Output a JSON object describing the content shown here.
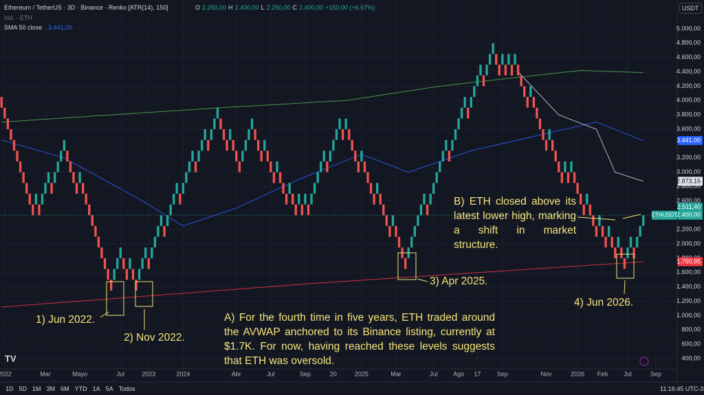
{
  "header": {
    "symbol": "Ethereum / TetherUS · 3D · Binance · Renko [ATR(14), 150]",
    "ohlc": [
      "O",
      "2.250,00",
      "H",
      "2.400,00",
      "L",
      "2.250,00",
      "C",
      "2.400,00",
      "+150,00 (+6,67%)"
    ],
    "volume": "Vol. · ETH",
    "sma_label": "SMA 50 close",
    "sma_value": "3.441,00",
    "currency": "USDT"
  },
  "toolbar": {
    "ranges": [
      "1D",
      "5D",
      "1M",
      "3M",
      "6M",
      "YTD",
      "1A",
      "5A",
      "Todos"
    ],
    "clock": "11:16:45 UTC-3"
  },
  "chart_data": {
    "type": "renko",
    "brick_size": 150,
    "up_color": "#26a69a",
    "down_color": "#ef5350",
    "values": [
      3900,
      3750,
      3600,
      3450,
      3300,
      3150,
      3000,
      2850,
      2700,
      2550,
      2400,
      2700,
      2400,
      2700,
      2850,
      3000,
      2700,
      3000,
      3150,
      3300,
      3450,
      3150,
      3000,
      2850,
      2700,
      3000,
      2700,
      2550,
      2400,
      2250,
      2100,
      1950,
      1800,
      1650,
      1500,
      1350,
      1650,
      1800,
      1950,
      1650,
      1500,
      1800,
      1500,
      1350,
      1650,
      1800,
      1950,
      1650,
      1950,
      2100,
      2250,
      2400,
      2100,
      2400,
      2550,
      2700,
      2850,
      2550,
      2850,
      3000,
      3150,
      3300,
      3000,
      3300,
      3450,
      3600,
      3300,
      3600,
      3750,
      3900,
      3600,
      3450,
      3300,
      3600,
      3300,
      3150,
      3000,
      3300,
      3450,
      3600,
      3750,
      3450,
      3300,
      3150,
      3450,
      3150,
      3000,
      2850,
      3150,
      2850,
      2700,
      2550,
      2850,
      2550,
      2400,
      2700,
      2400,
      2700,
      2400,
      2700,
      2850,
      3000,
      3150,
      3300,
      3000,
      3300,
      3450,
      3600,
      3750,
      3450,
      3750,
      3450,
      3300,
      3150,
      3000,
      3300,
      3000,
      2850,
      2700,
      2550,
      2850,
      2550,
      2400,
      2250,
      2100,
      2400,
      2100,
      1950,
      1800,
      1650,
      1950,
      2100,
      2250,
      2400,
      2550,
      2700,
      2400,
      2700,
      2850,
      3000,
      3150,
      3300,
      3450,
      3150,
      3450,
      3600,
      3750,
      3900,
      4050,
      3750,
      4050,
      4200,
      4350,
      4500,
      4200,
      4500,
      4650,
      4800,
      4500,
      4350,
      4650,
      4350,
      4650,
      4350,
      4650,
      4350,
      4200,
      4050,
      3900,
      4200,
      3900,
      3750,
      3600,
      3450,
      3300,
      3600,
      3300,
      3150,
      3000,
      2850,
      3150,
      2850,
      3150,
      2850,
      2700,
      2550,
      2400,
      2700,
      2400,
      2250,
      2100,
      2400,
      2100,
      1950,
      2250,
      1950,
      1800,
      2100,
      1800,
      1650,
      1950,
      2100,
      1800,
      2100,
      2250,
      2400
    ],
    "lines": [
      {
        "color": "#2962ff",
        "x": [
          0,
          20,
          45,
          58,
          75,
          95,
          115,
          130,
          150,
          170,
          190,
          205
        ],
        "values": [
          3450,
          3200,
          2600,
          2250,
          2500,
          2900,
          3250,
          3000,
          3300,
          3500,
          3700,
          3441
        ]
      },
      {
        "color": "#4caf50",
        "x": [
          0,
          70,
          110,
          140,
          160,
          185,
          205
        ],
        "values": [
          3700,
          3900,
          4000,
          4200,
          4300,
          4420,
          4390
        ]
      },
      {
        "color": "#f23645",
        "x": [
          0,
          100,
          205
        ],
        "values": [
          1120,
          1450,
          1750.95
        ]
      },
      {
        "color": "#d1d4dc",
        "x": [
          165,
          178,
          190,
          196,
          205
        ],
        "values": [
          4400,
          3800,
          3600,
          3000,
          2873.16
        ]
      }
    ],
    "ylim": [
      400,
      5000
    ],
    "yticks": [
      {
        "value": 400,
        "label": "400,00"
      },
      {
        "value": 600,
        "label": "600,00"
      },
      {
        "value": 800,
        "label": "800,00"
      },
      {
        "value": 1000,
        "label": "1.000,00"
      },
      {
        "value": 1200,
        "label": "1.200,00"
      },
      {
        "value": 1400,
        "label": "1.400,00"
      },
      {
        "value": 1600,
        "label": "1.600,00"
      },
      {
        "value": 1800,
        "label": "1.800,00"
      },
      {
        "value": 2000,
        "label": "2.000,00"
      },
      {
        "value": 2200,
        "label": "2.200,00"
      },
      {
        "value": 2600,
        "label": "2.600,00"
      },
      {
        "value": 2800,
        "label": "2.800,00"
      },
      {
        "value": 3000,
        "label": "3.000,00"
      },
      {
        "value": 3200,
        "label": "3.200,00"
      },
      {
        "value": 3600,
        "label": "3.600,00"
      },
      {
        "value": 3800,
        "label": "3.800,00"
      },
      {
        "value": 4000,
        "label": "4.000,00"
      },
      {
        "value": 4200,
        "label": "4.200,00"
      },
      {
        "value": 4400,
        "label": "4.400,00"
      },
      {
        "value": 4600,
        "label": "4.600,00"
      },
      {
        "value": 4800,
        "label": "4.800,00"
      },
      {
        "value": 5000,
        "label": "5.000,00"
      }
    ],
    "xticks": [
      {
        "value": 1,
        "label": "2022"
      },
      {
        "value": 14,
        "label": "Mar"
      },
      {
        "value": 25,
        "label": "Mayo"
      },
      {
        "value": 38,
        "label": "Jul"
      },
      {
        "value": 47,
        "label": "2023"
      },
      {
        "value": 58,
        "label": "2024"
      },
      {
        "value": 75,
        "label": "Abr"
      },
      {
        "value": 86,
        "label": "Jul"
      },
      {
        "value": 97,
        "label": "Sep"
      },
      {
        "value": 106,
        "label": "20"
      },
      {
        "value": 115,
        "label": "2025"
      },
      {
        "value": 126,
        "label": "Mar"
      },
      {
        "value": 138,
        "label": "Jul"
      },
      {
        "value": 146,
        "label": "Ago"
      },
      {
        "value": 152,
        "label": "17"
      },
      {
        "value": 160,
        "label": "Sep"
      },
      {
        "value": 174,
        "label": "Nov"
      },
      {
        "value": 184,
        "label": "2026"
      },
      {
        "value": 192,
        "label": "Feb"
      },
      {
        "value": 200,
        "label": "Jul"
      },
      {
        "value": 209,
        "label": "Sep"
      }
    ],
    "price_labels": [
      {
        "value": 3441,
        "label": "3.441,00",
        "color": "#2962ff"
      },
      {
        "value": 2873.16,
        "label": "2.873,16",
        "color": "#e0e3eb"
      },
      {
        "value": 2511.4,
        "label": "2.511,40",
        "color": "#26a69a"
      },
      {
        "value": 2400,
        "label": "2.400,00",
        "color": "#26a69a"
      },
      {
        "value": 1750.95,
        "label": "1.750,95",
        "color": "#f23645"
      }
    ],
    "symbol_tag": "ETHUSDT",
    "annotations": {
      "a": "A) For the fourth time in five years, ETH traded around the AVWAP anchored to its Binance listing, currently at $1.7K. For now, having reached these levels suggests that ETH was oversold.",
      "b": "B) ETH closed above its latest lower high, marking a shift in market structure.",
      "l1": "1) Jun 2022.",
      "l2": "2) Nov 2022.",
      "l3": "3) Apr 2025.",
      "l4": "4) Jun 2026."
    }
  }
}
